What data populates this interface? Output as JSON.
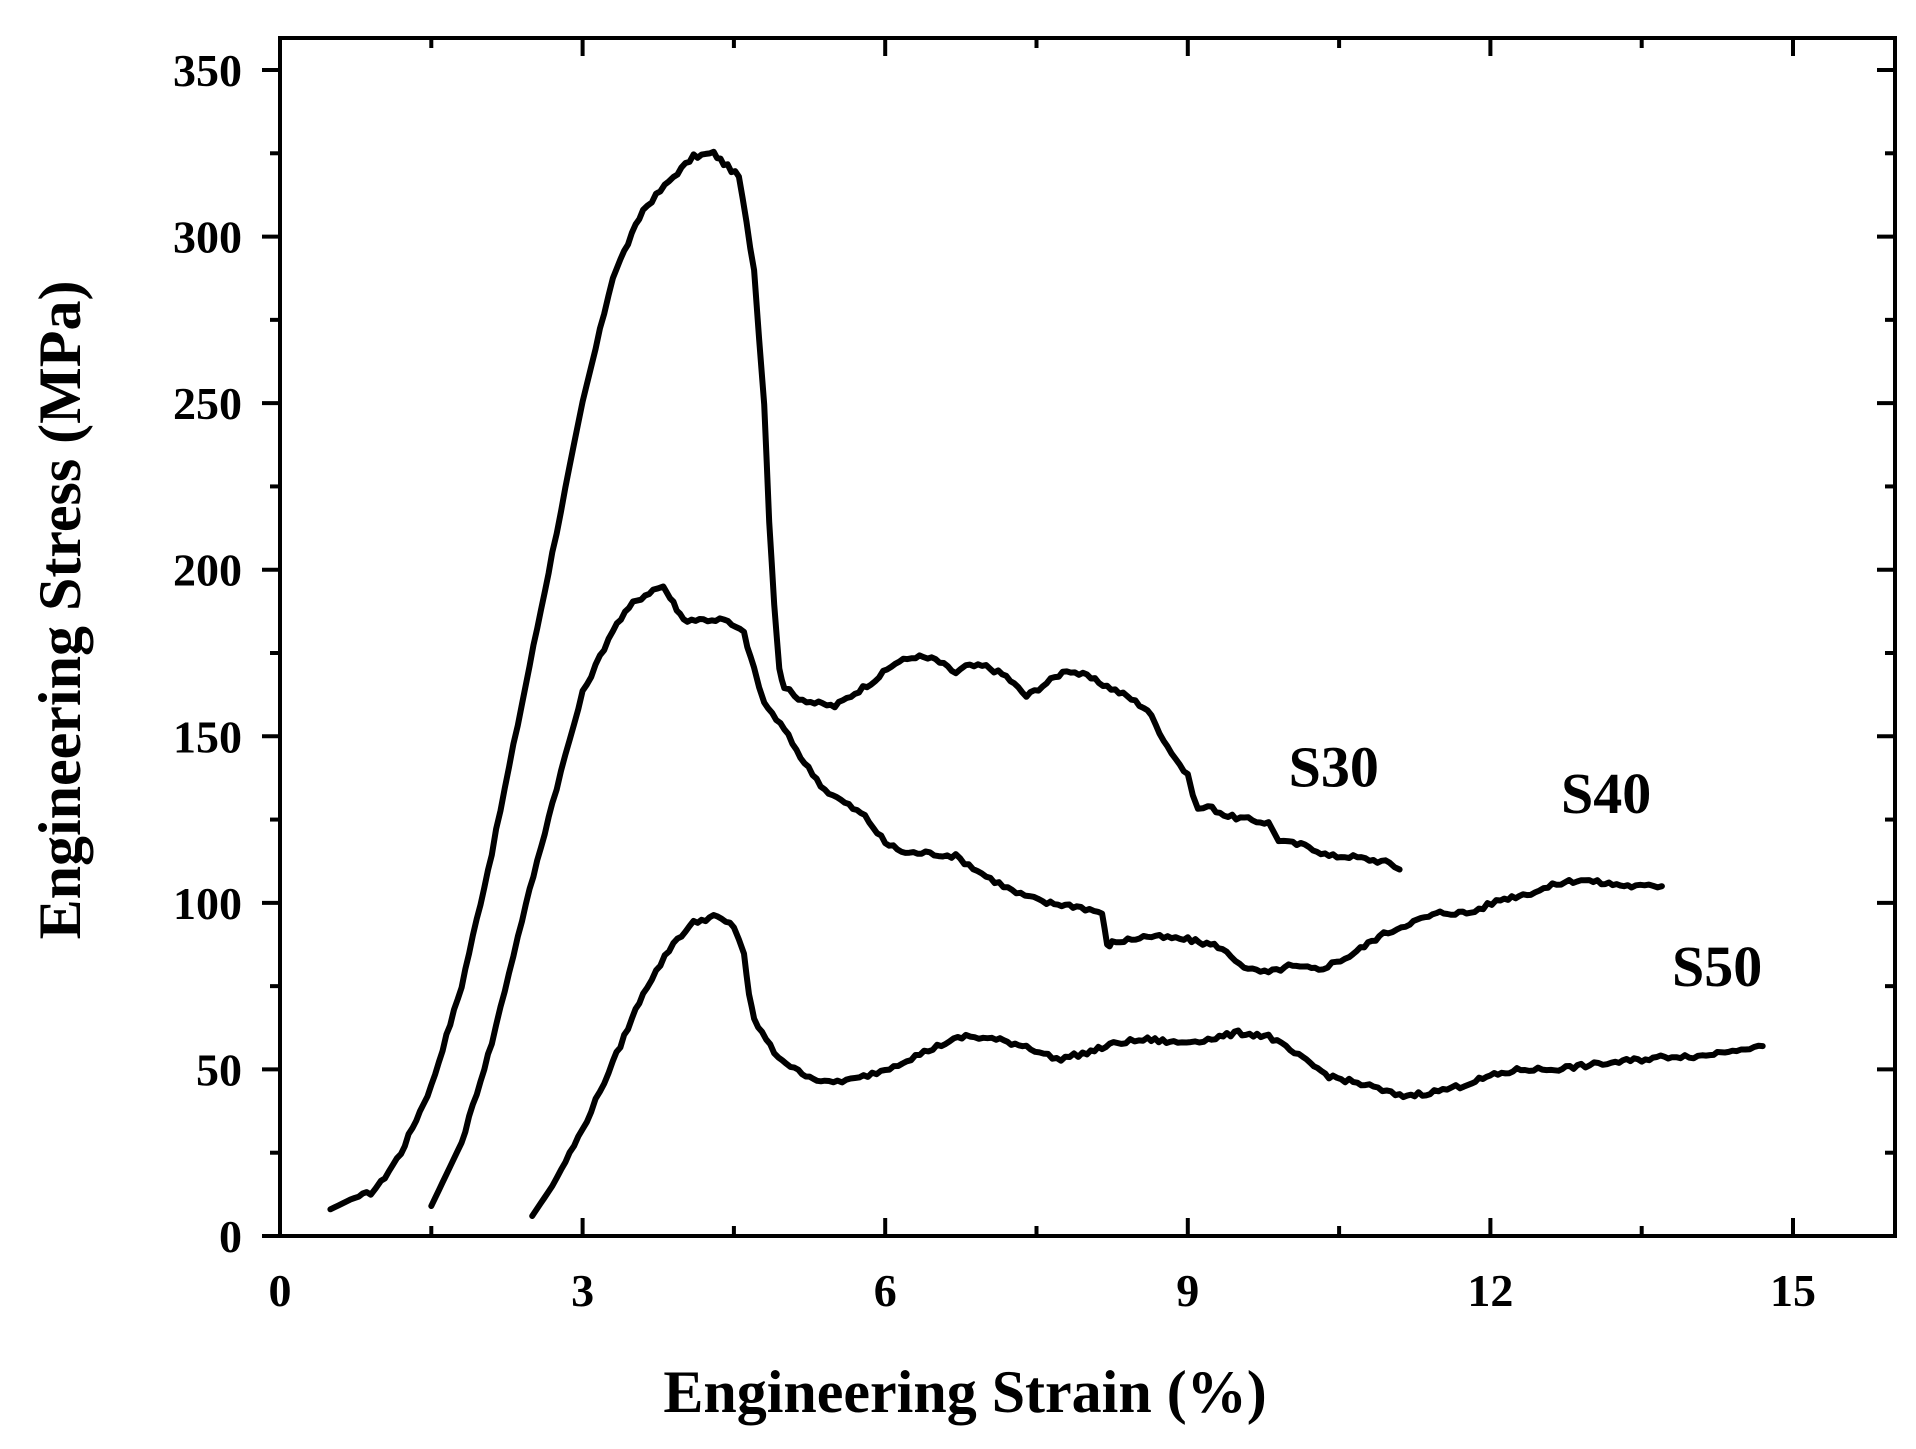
{
  "chart_data": {
    "type": "line",
    "title": "",
    "xlabel": "Engineering Strain (%)",
    "ylabel": "Engineering Stress (MPa)",
    "xlim": [
      0,
      16
    ],
    "ylim": [
      0,
      350
    ],
    "xticks": [
      0,
      3,
      6,
      9,
      12,
      15
    ],
    "yticks": [
      0,
      50,
      100,
      150,
      200,
      250,
      300,
      350
    ],
    "x_minor_step": 1.5,
    "y_minor_step": 25,
    "grid": false,
    "legend": "none",
    "series": [
      {
        "name": "S30",
        "label": "S30",
        "label_at": [
          10.0,
          135
        ],
        "x": [
          0.5,
          0.7,
          0.9,
          1.0,
          1.2,
          1.5,
          1.8,
          2.1,
          2.4,
          2.7,
          3.0,
          3.3,
          3.6,
          3.9,
          4.1,
          4.3,
          4.4,
          4.55,
          4.7,
          4.8,
          4.85,
          4.9,
          4.95,
          5.0,
          5.1,
          5.3,
          5.5,
          5.7,
          5.9,
          6.1,
          6.3,
          6.5,
          6.7,
          6.8,
          7.0,
          7.2,
          7.4,
          7.6,
          7.8,
          8.0,
          8.2,
          8.4,
          8.6,
          8.8,
          9.0,
          9.1,
          9.2,
          9.4,
          9.6,
          9.8,
          9.9,
          10.0,
          10.2,
          10.4,
          10.6,
          10.8,
          11.0,
          11.1
        ],
        "values": [
          8,
          11,
          13,
          16,
          25,
          45,
          75,
          115,
          160,
          205,
          250,
          288,
          308,
          318,
          324,
          325,
          322,
          318,
          290,
          250,
          215,
          190,
          170,
          165,
          162,
          160,
          159,
          163,
          167,
          172,
          174,
          173,
          169,
          171,
          171,
          168,
          162,
          166,
          170,
          168,
          165,
          162,
          158,
          147,
          138,
          128,
          129,
          126,
          125,
          124,
          119,
          118,
          117,
          114,
          114,
          113,
          112,
          110
        ]
      },
      {
        "name": "S40",
        "label": "S40",
        "label_at": [
          12.7,
          127
        ],
        "x": [
          1.5,
          1.8,
          2.1,
          2.4,
          2.7,
          3.0,
          3.3,
          3.5,
          3.7,
          3.8,
          3.9,
          4.0,
          4.2,
          4.4,
          4.6,
          4.7,
          4.8,
          5.0,
          5.2,
          5.4,
          5.6,
          5.8,
          6.0,
          6.2,
          6.4,
          6.7,
          7.0,
          7.3,
          7.6,
          7.9,
          8.15,
          8.2,
          8.25,
          8.6,
          9.0,
          9.3,
          9.6,
          9.8,
          10.0,
          10.3,
          10.6,
          10.9,
          11.2,
          11.5,
          11.8,
          12.1,
          12.4,
          12.7,
          12.9,
          13.1,
          13.4,
          13.7
        ],
        "values": [
          9,
          28,
          58,
          95,
          130,
          163,
          182,
          190,
          194,
          195,
          190,
          185,
          185,
          185,
          181,
          170,
          160,
          152,
          142,
          134,
          130,
          126,
          118,
          115,
          115,
          114,
          108,
          103,
          100,
          99,
          97,
          87,
          88,
          90,
          89,
          87,
          80,
          79,
          81,
          80,
          84,
          90,
          94,
          97,
          97,
          101,
          103,
          106,
          107,
          106,
          105,
          105
        ]
      },
      {
        "name": "S50",
        "label": "S50",
        "label_at": [
          13.8,
          75
        ],
        "x": [
          2.5,
          2.7,
          3.0,
          3.3,
          3.6,
          3.9,
          4.1,
          4.3,
          4.5,
          4.6,
          4.65,
          4.7,
          4.9,
          5.1,
          5.4,
          5.7,
          6.0,
          6.3,
          6.6,
          6.8,
          7.1,
          7.4,
          7.7,
          8.0,
          8.3,
          8.6,
          8.9,
          9.2,
          9.5,
          9.8,
          10.1,
          10.4,
          10.8,
          11.1,
          11.4,
          11.7,
          12.0,
          12.3,
          12.6,
          12.9,
          13.2,
          13.5,
          13.8,
          14.1,
          14.4,
          14.7
        ],
        "values": [
          6,
          15,
          32,
          52,
          73,
          88,
          94,
          96,
          93,
          85,
          72,
          65,
          55,
          50,
          46,
          47,
          50,
          54,
          58,
          60,
          59,
          57,
          53,
          55,
          58,
          59,
          58,
          59,
          61,
          60,
          54,
          48,
          45,
          42,
          43,
          45,
          48,
          50,
          50,
          51,
          52,
          53,
          54,
          54,
          56,
          57
        ]
      }
    ]
  }
}
